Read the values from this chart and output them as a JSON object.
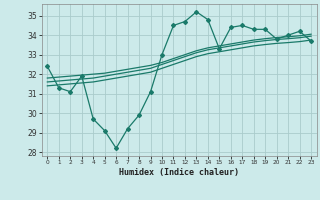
{
  "title": "",
  "xlabel": "Humidex (Indice chaleur)",
  "bg_color": "#cceaea",
  "grid_color": "#aacccc",
  "line_color": "#1a7a6a",
  "xlim": [
    -0.5,
    23.5
  ],
  "ylim": [
    27.8,
    35.6
  ],
  "xticks": [
    0,
    1,
    2,
    3,
    4,
    5,
    6,
    7,
    8,
    9,
    10,
    11,
    12,
    13,
    14,
    15,
    16,
    17,
    18,
    19,
    20,
    21,
    22,
    23
  ],
  "yticks": [
    28,
    29,
    30,
    31,
    32,
    33,
    34,
    35
  ],
  "main_x": [
    0,
    1,
    2,
    3,
    4,
    5,
    6,
    7,
    8,
    9,
    10,
    11,
    12,
    13,
    14,
    15,
    16,
    17,
    18,
    19,
    20,
    21,
    22,
    23
  ],
  "main_y": [
    32.4,
    31.3,
    31.1,
    31.9,
    29.7,
    29.1,
    28.2,
    29.2,
    29.9,
    31.1,
    33.0,
    34.5,
    34.7,
    35.2,
    34.8,
    33.3,
    34.4,
    34.5,
    34.3,
    34.3,
    33.8,
    34.0,
    34.2,
    33.7
  ],
  "line2_x": [
    0,
    1,
    2,
    3,
    4,
    5,
    6,
    7,
    8,
    9,
    10,
    11,
    12,
    13,
    14,
    15,
    16,
    17,
    18,
    19,
    20,
    21,
    22,
    23
  ],
  "line2_y": [
    31.8,
    31.85,
    31.9,
    31.95,
    32.0,
    32.05,
    32.15,
    32.25,
    32.35,
    32.45,
    32.6,
    32.8,
    33.0,
    33.2,
    33.35,
    33.45,
    33.55,
    33.65,
    33.75,
    33.82,
    33.88,
    33.92,
    33.97,
    34.05
  ],
  "line3_x": [
    0,
    1,
    2,
    3,
    4,
    5,
    6,
    7,
    8,
    9,
    10,
    11,
    12,
    13,
    14,
    15,
    16,
    17,
    18,
    19,
    20,
    21,
    22,
    23
  ],
  "line3_y": [
    31.6,
    31.65,
    31.7,
    31.75,
    31.8,
    31.9,
    32.0,
    32.1,
    32.2,
    32.3,
    32.5,
    32.7,
    32.9,
    33.1,
    33.25,
    33.35,
    33.45,
    33.55,
    33.65,
    33.72,
    33.78,
    33.82,
    33.87,
    33.95
  ],
  "line4_x": [
    0,
    1,
    2,
    3,
    4,
    5,
    6,
    7,
    8,
    9,
    10,
    11,
    12,
    13,
    14,
    15,
    16,
    17,
    18,
    19,
    20,
    21,
    22,
    23
  ],
  "line4_y": [
    31.4,
    31.45,
    31.5,
    31.55,
    31.6,
    31.7,
    31.8,
    31.9,
    32.0,
    32.1,
    32.3,
    32.5,
    32.7,
    32.9,
    33.05,
    33.15,
    33.25,
    33.35,
    33.45,
    33.52,
    33.58,
    33.62,
    33.67,
    33.75
  ]
}
